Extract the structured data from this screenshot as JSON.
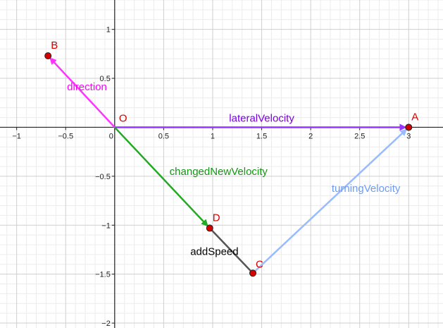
{
  "view": {
    "xmin": -1.17,
    "xmax": 3.35,
    "ymin": -2.05,
    "ymax": 1.3
  },
  "axes": {
    "x_ticks": [
      {
        "v": -1,
        "label": "−1"
      },
      {
        "v": -0.5,
        "label": "−0.5"
      },
      {
        "v": 0,
        "label": "0"
      },
      {
        "v": 0.5,
        "label": "0.5"
      },
      {
        "v": 1,
        "label": "1"
      },
      {
        "v": 1.5,
        "label": "1.5"
      },
      {
        "v": 2,
        "label": "2"
      },
      {
        "v": 2.5,
        "label": "2.5"
      },
      {
        "v": 3,
        "label": "3"
      }
    ],
    "y_ticks": [
      {
        "v": 1,
        "label": "1"
      },
      {
        "v": 0.5,
        "label": "0.5"
      },
      {
        "v": -0.5,
        "label": "−0.5"
      },
      {
        "v": -1,
        "label": "−1"
      },
      {
        "v": -1.5,
        "label": "−1.5"
      },
      {
        "v": -2,
        "label": "−2"
      }
    ],
    "grid_minor_step": 0.1,
    "grid_major_step": 0.5,
    "colors": {
      "minor": "#ececec",
      "major": "#cfcfcf",
      "axis": "#222222"
    }
  },
  "points": [
    {
      "id": "O",
      "label": "O",
      "x": 0,
      "y": 0,
      "marker": false,
      "color": "#d50000"
    },
    {
      "id": "A",
      "label": "A",
      "x": 3,
      "y": 0,
      "marker": true,
      "color": "#d50000"
    },
    {
      "id": "B",
      "label": "B",
      "x": -0.68,
      "y": 0.73,
      "marker": true,
      "color": "#d50000"
    },
    {
      "id": "D",
      "label": "D",
      "x": 0.97,
      "y": -1.03,
      "marker": true,
      "color": "#d50000"
    },
    {
      "id": "C",
      "label": "C",
      "x": 1.41,
      "y": -1.49,
      "marker": true,
      "color": "#d50000"
    }
  ],
  "vectors": [
    {
      "id": "direction",
      "label": "direction",
      "from": "O",
      "to": "B",
      "color": "#ff33ff",
      "label_color": "#ff00ff"
    },
    {
      "id": "lateral-velocity",
      "label": "lateralVelocity",
      "from": "O",
      "to": "A",
      "color": "#9933ff",
      "label_color": "#7b00e0"
    },
    {
      "id": "changed-new-velocity",
      "label": "changedNewVelocity",
      "from": "O",
      "to": "D",
      "color": "#22aa22",
      "label_color": "#149414"
    },
    {
      "id": "turning-velocity",
      "label": "turningVelocity",
      "from": "C",
      "to": "A",
      "color": "#99bbff",
      "label_color": "#6f9cf2"
    }
  ],
  "segments": [
    {
      "id": "add-speed",
      "label": "addSpeed",
      "from": "D",
      "to": "C",
      "color": "#555555",
      "label_color": "#000000"
    }
  ]
}
